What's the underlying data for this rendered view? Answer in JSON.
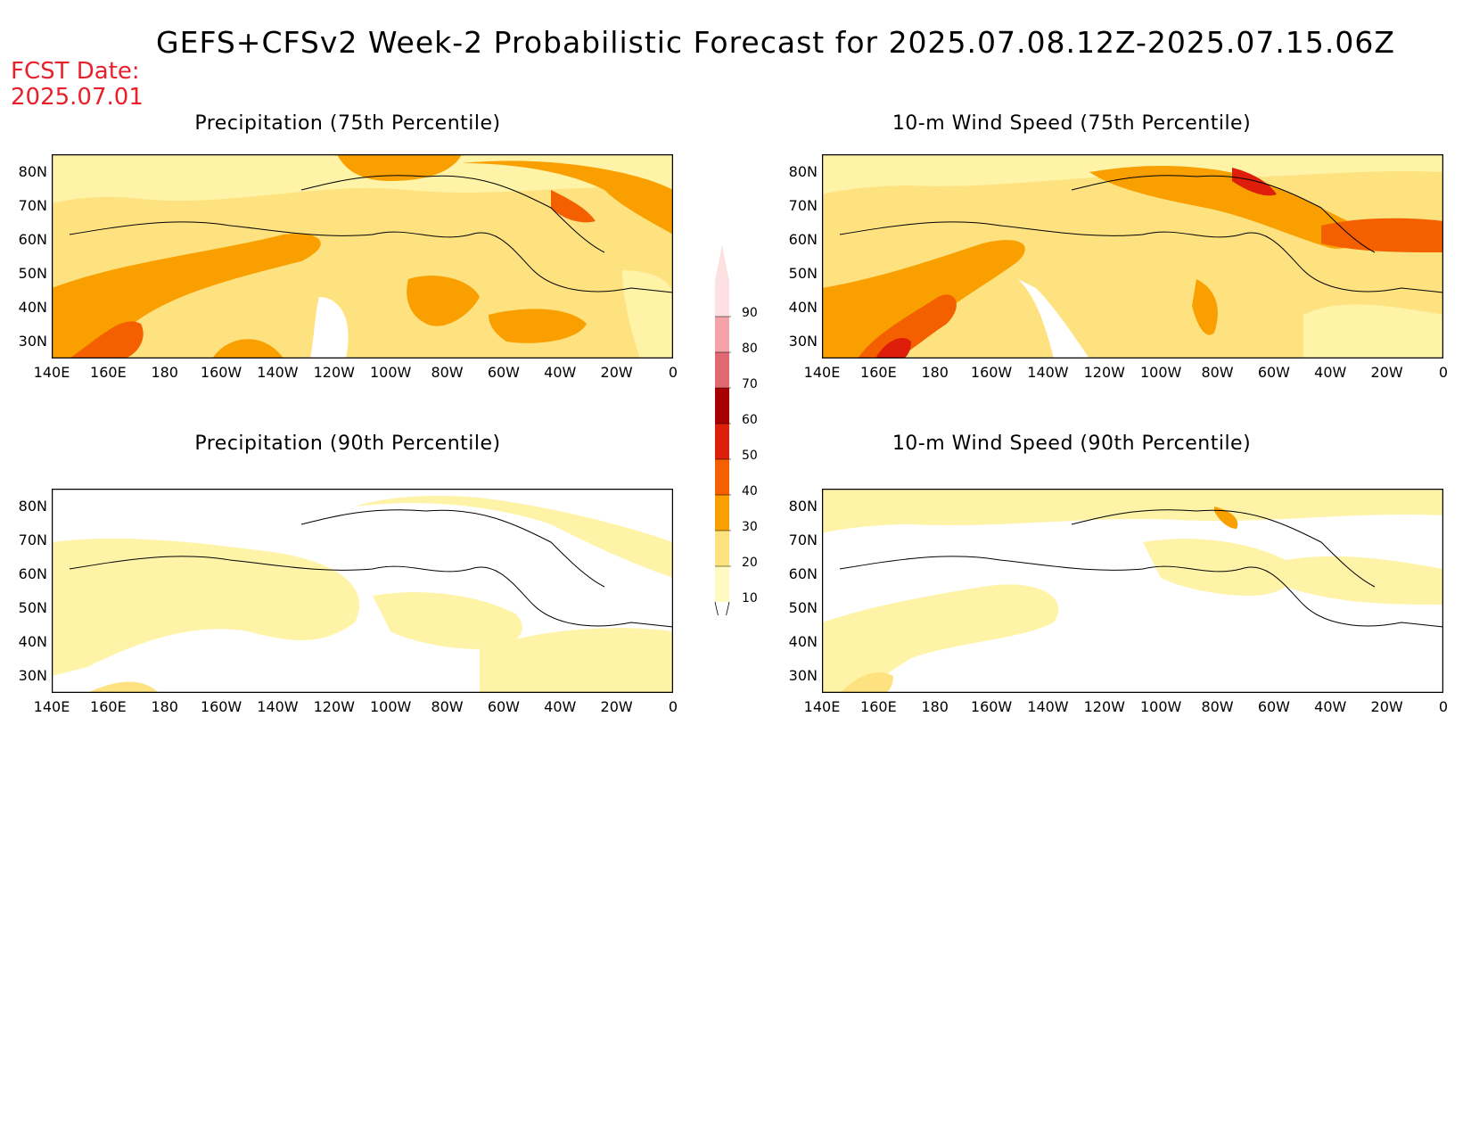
{
  "title": "GEFS+CFSv2 Week-2 Probabilistic Forecast for 2025.07.08.12Z-2025.07.15.06Z",
  "fcst_date": {
    "label": "FCST Date:",
    "value": "2025.07.01"
  },
  "panels": [
    {
      "title": "Precipitation (75th Percentile)"
    },
    {
      "title": "10-m Wind Speed (75th Percentile)"
    },
    {
      "title": "Precipitation (90th Percentile)"
    },
    {
      "title": "10-m Wind Speed (90th Percentile)"
    }
  ],
  "lat_labels": [
    "80N",
    "70N",
    "60N",
    "50N",
    "40N",
    "30N"
  ],
  "lon_labels": [
    "140E",
    "160E",
    "180",
    "160W",
    "140W",
    "120W",
    "100W",
    "80W",
    "60W",
    "40W",
    "20W",
    "0"
  ],
  "colorbar": {
    "labels": [
      "90",
      "80",
      "70",
      "60",
      "50",
      "40",
      "30",
      "20",
      "10"
    ],
    "colors": [
      "#fce0e2",
      "#f4a3a8",
      "#e06870",
      "#a80000",
      "#dc1e0a",
      "#f46000",
      "#f9a000",
      "#fee280",
      "#fffbc0"
    ]
  }
}
